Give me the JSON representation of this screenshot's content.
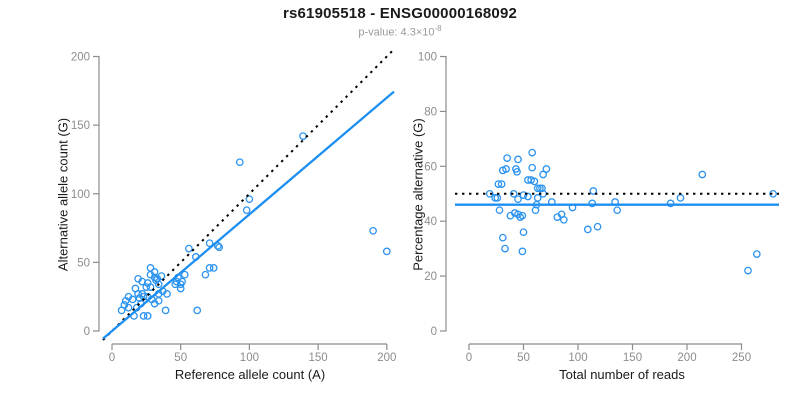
{
  "header": {
    "title": "rs61905518 - ENSG00000168092",
    "subtitle_base": "p-value: 4.3×10",
    "subtitle_exponent": "-8"
  },
  "colors": {
    "point": "#2b93f0",
    "solid_line": "#1e8ff2",
    "dotted_line": "#000000",
    "axis": "#8c8c8c",
    "tick_label": "#8c8c8c",
    "title": "#1a1a1a",
    "subtitle": "#9a9a9a"
  },
  "chart_data": [
    {
      "type": "scatter",
      "panel": "left",
      "xlabel": "Reference allele count (A)",
      "ylabel": "Alternative allele count (G)",
      "xlim": [
        0,
        200
      ],
      "ylim": [
        0,
        200
      ],
      "xticks": [
        0,
        50,
        100,
        150,
        200
      ],
      "yticks": [
        0,
        50,
        100,
        150,
        200
      ],
      "grid": false,
      "marker": "open-circle",
      "points": [
        [
          7,
          15
        ],
        [
          9,
          19
        ],
        [
          10,
          22
        ],
        [
          12,
          25
        ],
        [
          12,
          17
        ],
        [
          15,
          23
        ],
        [
          16,
          11
        ],
        [
          17,
          31
        ],
        [
          18,
          17
        ],
        [
          19,
          38
        ],
        [
          19,
          27
        ],
        [
          20,
          24
        ],
        [
          21,
          20
        ],
        [
          22,
          36
        ],
        [
          22,
          27
        ],
        [
          23,
          25
        ],
        [
          23,
          11
        ],
        [
          25,
          32
        ],
        [
          26,
          35
        ],
        [
          26,
          25
        ],
        [
          26,
          11
        ],
        [
          28,
          46
        ],
        [
          28,
          41
        ],
        [
          28,
          32
        ],
        [
          29,
          23
        ],
        [
          31,
          43
        ],
        [
          31,
          39
        ],
        [
          31,
          20
        ],
        [
          32,
          37
        ],
        [
          33,
          38
        ],
        [
          34,
          34
        ],
        [
          34,
          27
        ],
        [
          34,
          22
        ],
        [
          36,
          40
        ],
        [
          37,
          29
        ],
        [
          39,
          15
        ],
        [
          40,
          27
        ],
        [
          46,
          34
        ],
        [
          47,
          36
        ],
        [
          48,
          39
        ],
        [
          50,
          34
        ],
        [
          50,
          31
        ],
        [
          51,
          36
        ],
        [
          53,
          41
        ],
        [
          56,
          60
        ],
        [
          61,
          54
        ],
        [
          62,
          15
        ],
        [
          68,
          41
        ],
        [
          71,
          64
        ],
        [
          71,
          46
        ],
        [
          74,
          46
        ],
        [
          77,
          62
        ],
        [
          78,
          61
        ],
        [
          93,
          123
        ],
        [
          98,
          88
        ],
        [
          100,
          96
        ],
        [
          139,
          142
        ],
        [
          190,
          73
        ],
        [
          200,
          58
        ]
      ],
      "lines": [
        {
          "name": "identity y=x",
          "style": "dotted",
          "color": "#000000",
          "slope": 1,
          "intercept": 0
        },
        {
          "name": "fit y=0.85x",
          "style": "solid",
          "color": "#1e8ff2",
          "slope": 0.85,
          "intercept": 0
        }
      ]
    },
    {
      "type": "scatter",
      "panel": "right",
      "xlabel": "Total number of reads",
      "ylabel": "Percentage alternative (G)",
      "xlim": [
        0,
        282
      ],
      "ylim": [
        0,
        100
      ],
      "xticks": [
        0,
        50,
        100,
        150,
        200,
        250
      ],
      "yticks": [
        0,
        20,
        40,
        60,
        80,
        100
      ],
      "grid": false,
      "marker": "open-circle",
      "points": [
        [
          19,
          50
        ],
        [
          24,
          48.5
        ],
        [
          26,
          48.5
        ],
        [
          27,
          53.5
        ],
        [
          28,
          44
        ],
        [
          30,
          53.5
        ],
        [
          31,
          58.5
        ],
        [
          31,
          34
        ],
        [
          33,
          30
        ],
        [
          34,
          59
        ],
        [
          35,
          63
        ],
        [
          38,
          42
        ],
        [
          41,
          50
        ],
        [
          42,
          43
        ],
        [
          43,
          59
        ],
        [
          44,
          58
        ],
        [
          45,
          62.5
        ],
        [
          45,
          48
        ],
        [
          45,
          42.5
        ],
        [
          47,
          41.5
        ],
        [
          49,
          42
        ],
        [
          49,
          29
        ],
        [
          50,
          49.5
        ],
        [
          50,
          36
        ],
        [
          54,
          55
        ],
        [
          54,
          49
        ],
        [
          57,
          55
        ],
        [
          58,
          65
        ],
        [
          58,
          59.5
        ],
        [
          60,
          54.5
        ],
        [
          61,
          44
        ],
        [
          62,
          46
        ],
        [
          63,
          52
        ],
        [
          63,
          48.5
        ],
        [
          65,
          52
        ],
        [
          67,
          52
        ],
        [
          68,
          57
        ],
        [
          68,
          50
        ],
        [
          71,
          59
        ],
        [
          76,
          47
        ],
        [
          81,
          41.5
        ],
        [
          85,
          42.5
        ],
        [
          87,
          40.5
        ],
        [
          95,
          45
        ],
        [
          109,
          37
        ],
        [
          113,
          46.5
        ],
        [
          114,
          51
        ],
        [
          118,
          38
        ],
        [
          134,
          47
        ],
        [
          136,
          44
        ],
        [
          185,
          46.5
        ],
        [
          194,
          48.5
        ],
        [
          214,
          57
        ],
        [
          256,
          22
        ],
        [
          264,
          28
        ],
        [
          279,
          50
        ]
      ],
      "lines": [
        {
          "name": "expected 50%",
          "style": "dotted",
          "color": "#000000",
          "y": 50
        },
        {
          "name": "mean percentage",
          "style": "solid",
          "color": "#1e8ff2",
          "y": 46
        }
      ]
    }
  ]
}
